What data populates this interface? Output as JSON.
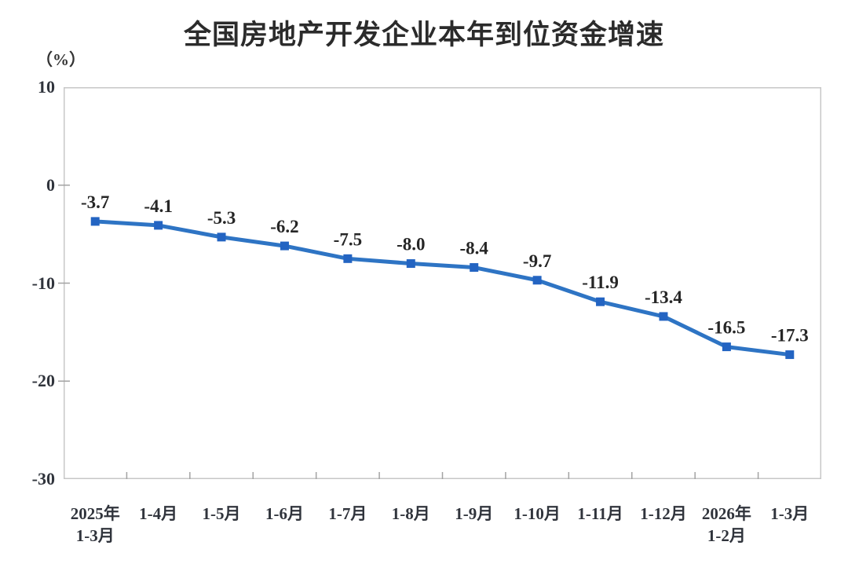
{
  "title": "全国房地产开发企业本年到位资金增速",
  "chart_data": {
    "type": "line",
    "title": "全国房地产开发企业本年到位资金增速",
    "unit_label": "（%）",
    "categories": [
      [
        "2025年",
        "1-3月"
      ],
      "1-4月",
      "1-5月",
      "1-6月",
      "1-7月",
      "1-8月",
      "1-9月",
      "1-10月",
      "1-11月",
      "1-12月",
      [
        "2026年",
        "1-2月"
      ],
      "1-3月"
    ],
    "values": [
      -3.7,
      -4.1,
      -5.3,
      -6.2,
      -7.5,
      -8.0,
      -8.4,
      -9.7,
      -11.9,
      -13.4,
      -16.5,
      -17.3
    ],
    "data_labels": [
      "-3.7",
      "-4.1",
      "-5.3",
      "-6.2",
      "-7.5",
      "-8.0",
      "-8.4",
      "-9.7",
      "-11.9",
      "-13.4",
      "-16.5",
      "-17.3"
    ],
    "ylim": [
      -30,
      10
    ],
    "yticks": [
      10,
      0,
      -10,
      -20,
      -30
    ],
    "grid": false,
    "legend": "none",
    "colors": {
      "line": "#2E74C4",
      "marker": "#2364C2",
      "value_label": "#262626",
      "axis_border": "#c7c7c7",
      "tick": "#a3a3a3",
      "title": "#2b2b2b",
      "axis_text": "#30343c"
    }
  }
}
